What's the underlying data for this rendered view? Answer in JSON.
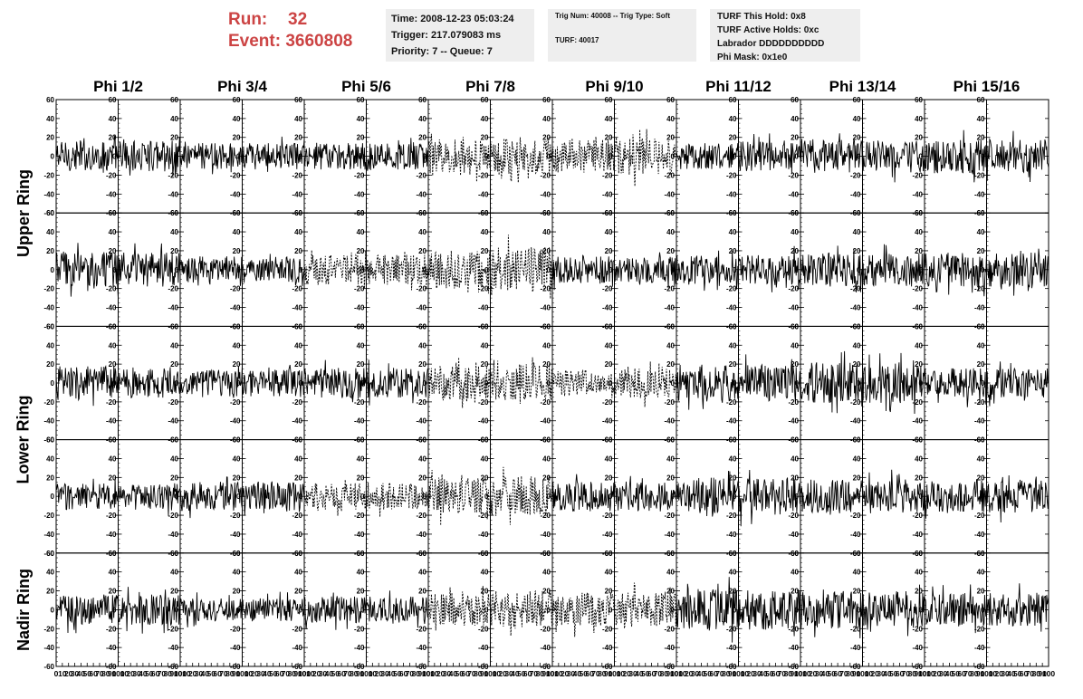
{
  "header": {
    "run_label": "Run:",
    "run_value": "32",
    "event_label": "Event:",
    "event_value": "3660808"
  },
  "info_time": {
    "time": "Time: 2008-12-23 05:03:24",
    "trigger": "Trigger: 217.079083 ms",
    "priority": "Priority: 7 -- Queue: 7"
  },
  "info_trig": {
    "trig_line": "Trig Num: 40008 -- Trig Type: Soft",
    "turf_line": "TURF: 40017"
  },
  "info_turf": {
    "hold": "TURF This Hold: 0x8",
    "active": "TURF Active Holds: 0xc",
    "labrador": "Labrador DDDDDDDDDD",
    "phimask": "Phi Mask: 0x1e0"
  },
  "columns": [
    "Phi 1/2",
    "Phi 3/4",
    "Phi 5/6",
    "Phi 7/8",
    "Phi 9/10",
    "Phi 11/12",
    "Phi 13/14",
    "Phi 15/16"
  ],
  "rows": [
    "Upper Ring",
    "Lower Ring",
    "Nadir Ring"
  ],
  "chart_data": {
    "type": "line",
    "panel_rows": 5,
    "panel_cols": 16,
    "xlim": [
      0,
      100
    ],
    "ylim": [
      -60,
      60
    ],
    "y_ticks": [
      -60,
      -40,
      -20,
      0,
      20,
      40,
      60
    ],
    "x_ticks": [
      0,
      10,
      20,
      30,
      40,
      50,
      60,
      70,
      80,
      90,
      100
    ],
    "samples_per_trace": 100,
    "series_note_dashed_panels": [
      [
        0,
        6
      ],
      [
        0,
        7
      ],
      [
        0,
        8
      ],
      [
        0,
        9
      ],
      [
        1,
        4
      ],
      [
        1,
        5
      ],
      [
        1,
        6
      ],
      [
        1,
        7
      ],
      [
        2,
        6
      ],
      [
        2,
        7
      ],
      [
        2,
        8
      ],
      [
        2,
        9
      ],
      [
        3,
        4
      ],
      [
        3,
        5
      ],
      [
        3,
        6
      ],
      [
        3,
        7
      ],
      [
        4,
        6
      ],
      [
        4,
        7
      ],
      [
        4,
        8
      ],
      [
        4,
        9
      ]
    ],
    "typical_amplitude": [
      [
        16,
        16,
        14,
        14,
        14,
        14,
        18,
        20,
        18,
        20,
        14,
        16,
        18,
        18,
        18,
        18
      ],
      [
        20,
        18,
        14,
        14,
        16,
        16,
        20,
        24,
        14,
        14,
        16,
        16,
        18,
        18,
        18,
        18
      ],
      [
        18,
        16,
        14,
        14,
        16,
        16,
        18,
        20,
        14,
        16,
        20,
        20,
        22,
        22,
        16,
        16
      ],
      [
        14,
        14,
        16,
        16,
        14,
        14,
        20,
        22,
        16,
        16,
        20,
        20,
        18,
        18,
        18,
        18
      ],
      [
        16,
        16,
        12,
        12,
        14,
        14,
        18,
        20,
        18,
        18,
        22,
        22,
        20,
        20,
        18,
        18
      ]
    ]
  }
}
